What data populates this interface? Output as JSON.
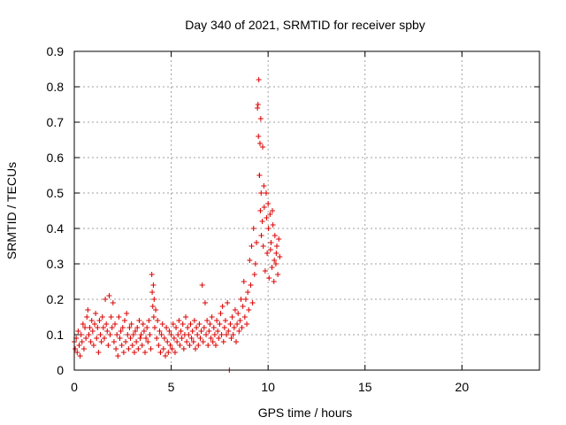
{
  "chart_data": {
    "type": "scatter",
    "title": "Day 340 of 2021, SRMTID for receiver spby",
    "xlabel": "GPS time / hours",
    "ylabel": "SRMTID / TECUs",
    "xlim": [
      0,
      24
    ],
    "ylim": [
      0,
      0.9
    ],
    "xticks": [
      0,
      5,
      10,
      15,
      20
    ],
    "xtick_labels": [
      "0",
      "5",
      "10",
      "15",
      "20"
    ],
    "yticks": [
      0,
      0.1,
      0.2,
      0.3,
      0.4,
      0.5,
      0.6,
      0.7,
      0.8,
      0.9
    ],
    "ytick_labels": [
      "0",
      "0.1",
      "0.2",
      "0.3",
      "0.4",
      "0.5",
      "0.6",
      "0.7",
      "0.8",
      "0.9"
    ],
    "grid": true,
    "marker": "+",
    "color": "#dd0000",
    "series": [
      {
        "name": "SRMTID",
        "points": [
          [
            0.0,
            0.08
          ],
          [
            0.05,
            0.06
          ],
          [
            0.1,
            0.09
          ],
          [
            0.15,
            0.05
          ],
          [
            0.2,
            0.11
          ],
          [
            0.25,
            0.07
          ],
          [
            0.3,
            0.04
          ],
          [
            0.35,
            0.1
          ],
          [
            0.4,
            0.08
          ],
          [
            0.45,
            0.13
          ],
          [
            0.5,
            0.06
          ],
          [
            0.55,
            0.12
          ],
          [
            0.6,
            0.09
          ],
          [
            0.65,
            0.15
          ],
          [
            0.7,
            0.17
          ],
          [
            0.75,
            0.1
          ],
          [
            0.8,
            0.12
          ],
          [
            0.85,
            0.08
          ],
          [
            0.9,
            0.14
          ],
          [
            0.95,
            0.11
          ],
          [
            1.0,
            0.07
          ],
          [
            1.05,
            0.13
          ],
          [
            1.1,
            0.16
          ],
          [
            1.15,
            0.09
          ],
          [
            1.2,
            0.12
          ],
          [
            1.25,
            0.05
          ],
          [
            1.3,
            0.14
          ],
          [
            1.35,
            0.1
          ],
          [
            1.4,
            0.08
          ],
          [
            1.45,
            0.15
          ],
          [
            1.5,
            0.12
          ],
          [
            1.55,
            0.09
          ],
          [
            1.6,
            0.2
          ],
          [
            1.65,
            0.13
          ],
          [
            1.7,
            0.11
          ],
          [
            1.75,
            0.07
          ],
          [
            1.8,
            0.21
          ],
          [
            1.85,
            0.1
          ],
          [
            1.9,
            0.15
          ],
          [
            1.95,
            0.12
          ],
          [
            2.0,
            0.19
          ],
          [
            2.05,
            0.08
          ],
          [
            2.1,
            0.13
          ],
          [
            2.15,
            0.06
          ],
          [
            2.2,
            0.1
          ],
          [
            2.25,
            0.04
          ],
          [
            2.3,
            0.15
          ],
          [
            2.35,
            0.09
          ],
          [
            2.4,
            0.11
          ],
          [
            2.45,
            0.07
          ],
          [
            2.5,
            0.12
          ],
          [
            2.55,
            0.05
          ],
          [
            2.6,
            0.14
          ],
          [
            2.65,
            0.08
          ],
          [
            2.7,
            0.16
          ],
          [
            2.75,
            0.1
          ],
          [
            2.8,
            0.06
          ],
          [
            2.85,
            0.12
          ],
          [
            2.9,
            0.09
          ],
          [
            2.95,
            0.13
          ],
          [
            3.0,
            0.07
          ],
          [
            3.05,
            0.1
          ],
          [
            3.1,
            0.05
          ],
          [
            3.15,
            0.11
          ],
          [
            3.2,
            0.08
          ],
          [
            3.25,
            0.12
          ],
          [
            3.3,
            0.06
          ],
          [
            3.35,
            0.14
          ],
          [
            3.4,
            0.09
          ],
          [
            3.45,
            0.1
          ],
          [
            3.5,
            0.07
          ],
          [
            3.55,
            0.13
          ],
          [
            3.6,
            0.11
          ],
          [
            3.65,
            0.05
          ],
          [
            3.7,
            0.09
          ],
          [
            3.75,
            0.12
          ],
          [
            3.8,
            0.08
          ],
          [
            3.85,
            0.14
          ],
          [
            3.9,
            0.1
          ],
          [
            3.95,
            0.06
          ],
          [
            4.0,
            0.27
          ],
          [
            4.02,
            0.22
          ],
          [
            4.05,
            0.18
          ],
          [
            4.08,
            0.24
          ],
          [
            4.1,
            0.15
          ],
          [
            4.12,
            0.2
          ],
          [
            4.15,
            0.12
          ],
          [
            4.2,
            0.17
          ],
          [
            4.25,
            0.09
          ],
          [
            4.3,
            0.14
          ],
          [
            4.35,
            0.07
          ],
          [
            4.4,
            0.11
          ],
          [
            4.45,
            0.05
          ],
          [
            4.5,
            0.1
          ],
          [
            4.55,
            0.13
          ],
          [
            4.6,
            0.06
          ],
          [
            4.65,
            0.09
          ],
          [
            4.7,
            0.04
          ],
          [
            4.75,
            0.12
          ],
          [
            4.8,
            0.08
          ],
          [
            4.85,
            0.05
          ],
          [
            4.9,
            0.11
          ],
          [
            4.95,
            0.07
          ],
          [
            5.0,
            0.1
          ],
          [
            5.05,
            0.06
          ],
          [
            5.1,
            0.13
          ],
          [
            5.15,
            0.09
          ],
          [
            5.2,
            0.05
          ],
          [
            5.25,
            0.12
          ],
          [
            5.3,
            0.08
          ],
          [
            5.35,
            0.1
          ],
          [
            5.4,
            0.14
          ],
          [
            5.45,
            0.07
          ],
          [
            5.5,
            0.11
          ],
          [
            5.55,
            0.09
          ],
          [
            5.6,
            0.13
          ],
          [
            5.65,
            0.06
          ],
          [
            5.7,
            0.1
          ],
          [
            5.75,
            0.15
          ],
          [
            5.8,
            0.08
          ],
          [
            5.85,
            0.12
          ],
          [
            5.9,
            0.1
          ],
          [
            5.95,
            0.07
          ],
          [
            6.0,
            0.13
          ],
          [
            6.05,
            0.09
          ],
          [
            6.1,
            0.11
          ],
          [
            6.15,
            0.08
          ],
          [
            6.2,
            0.14
          ],
          [
            6.25,
            0.06
          ],
          [
            6.3,
            0.12
          ],
          [
            6.35,
            0.1
          ],
          [
            6.4,
            0.07
          ],
          [
            6.45,
            0.13
          ],
          [
            6.5,
            0.09
          ],
          [
            6.55,
            0.11
          ],
          [
            6.6,
            0.24
          ],
          [
            6.65,
            0.08
          ],
          [
            6.7,
            0.12
          ],
          [
            6.75,
            0.19
          ],
          [
            6.8,
            0.1
          ],
          [
            6.85,
            0.14
          ],
          [
            6.9,
            0.07
          ],
          [
            6.95,
            0.11
          ],
          [
            7.0,
            0.13
          ],
          [
            7.05,
            0.09
          ],
          [
            7.1,
            0.15
          ],
          [
            7.15,
            0.08
          ],
          [
            7.2,
            0.12
          ],
          [
            7.25,
            0.1
          ],
          [
            7.3,
            0.07
          ],
          [
            7.35,
            0.14
          ],
          [
            7.4,
            0.11
          ],
          [
            7.45,
            0.09
          ],
          [
            7.5,
            0.13
          ],
          [
            7.55,
            0.16
          ],
          [
            7.6,
            0.1
          ],
          [
            7.65,
            0.18
          ],
          [
            7.7,
            0.08
          ],
          [
            7.75,
            0.12
          ],
          [
            7.8,
            0.14
          ],
          [
            7.85,
            0.1
          ],
          [
            7.9,
            0.19
          ],
          [
            7.95,
            0.11
          ],
          [
            8.0,
            0.0
          ],
          [
            8.05,
            0.13
          ],
          [
            8.1,
            0.09
          ],
          [
            8.15,
            0.15
          ],
          [
            8.2,
            0.1
          ],
          [
            8.25,
            0.12
          ],
          [
            8.3,
            0.17
          ],
          [
            8.35,
            0.08
          ],
          [
            8.4,
            0.13
          ],
          [
            8.45,
            0.16
          ],
          [
            8.5,
            0.11
          ],
          [
            8.55,
            0.14
          ],
          [
            8.6,
            0.2
          ],
          [
            8.65,
            0.12
          ],
          [
            8.7,
            0.18
          ],
          [
            8.75,
            0.25
          ],
          [
            8.8,
            0.15
          ],
          [
            8.85,
            0.2
          ],
          [
            8.9,
            0.13
          ],
          [
            8.95,
            0.22
          ],
          [
            9.0,
            0.17
          ],
          [
            9.05,
            0.31
          ],
          [
            9.1,
            0.24
          ],
          [
            9.15,
            0.35
          ],
          [
            9.2,
            0.19
          ],
          [
            9.25,
            0.4
          ],
          [
            9.3,
            0.27
          ],
          [
            9.35,
            0.3
          ],
          [
            9.4,
            0.36
          ],
          [
            9.45,
            0.74
          ],
          [
            9.5,
            0.66
          ],
          [
            9.52,
            0.82
          ],
          [
            9.55,
            0.55
          ],
          [
            9.58,
            0.64
          ],
          [
            9.6,
            0.45
          ],
          [
            9.62,
            0.71
          ],
          [
            9.65,
            0.38
          ],
          [
            9.7,
            0.42
          ],
          [
            9.72,
            0.63
          ],
          [
            9.75,
            0.35
          ],
          [
            9.8,
            0.46
          ],
          [
            9.85,
            0.28
          ],
          [
            9.9,
            0.5
          ],
          [
            9.95,
            0.33
          ],
          [
            10.0,
            0.47
          ],
          [
            10.05,
            0.26
          ],
          [
            10.1,
            0.44
          ],
          [
            10.15,
            0.36
          ],
          [
            10.2,
            0.29
          ],
          [
            10.25,
            0.41
          ],
          [
            10.3,
            0.25
          ],
          [
            10.35,
            0.38
          ],
          [
            10.4,
            0.3
          ],
          [
            10.45,
            0.35
          ],
          [
            10.5,
            0.27
          ],
          [
            10.55,
            0.37
          ],
          [
            10.6,
            0.32
          ],
          [
            9.48,
            0.75
          ],
          [
            9.56,
            0.55
          ],
          [
            9.64,
            0.5
          ],
          [
            9.78,
            0.52
          ],
          [
            9.92,
            0.43
          ],
          [
            10.02,
            0.4
          ],
          [
            10.12,
            0.34
          ],
          [
            10.22,
            0.45
          ],
          [
            10.32,
            0.31
          ],
          [
            10.42,
            0.33
          ]
        ]
      }
    ]
  }
}
